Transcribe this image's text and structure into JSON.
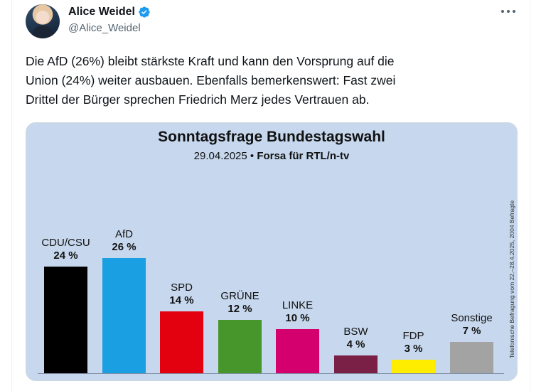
{
  "author": {
    "display_name": "Alice Weidel",
    "handle": "@Alice_Weidel"
  },
  "tweet": {
    "text": "Die AfD (26%) bleibt stärkste Kraft und kann den Vorsprung auf die\nUnion (24%) weiter ausbauen. Ebenfalls bemerkenswert: Fast zwei\nDrittel der Bürger sprechen Friedrich Merz jedes Vertrauen ab."
  },
  "icons": {
    "verified": "verified-badge-icon",
    "more": "more-options-icon"
  },
  "colors": {
    "verified": "#1d9bf0",
    "chart_background": "#c7d8ee"
  },
  "chart_data": {
    "type": "bar",
    "title": "Sonntagsfrage Bundestagswahl",
    "subtitle_date": "29.04.2025",
    "subtitle_sep": "•",
    "subtitle_source": "Forsa für RTL/n-tv",
    "side_note": "Telefonische Befragung vom 22.–28.4.2025, 2004 Befragte",
    "categories": [
      "CDU/CSU",
      "AfD",
      "SPD",
      "GRÜNE",
      "LINKE",
      "BSW",
      "FDP",
      "Sonstige"
    ],
    "values": [
      24,
      26,
      14,
      12,
      10,
      4,
      3,
      7
    ],
    "labels": [
      "24 %",
      "26 %",
      "14 %",
      "12 %",
      "10 %",
      "4 %",
      "3 %",
      "7 %"
    ],
    "colors": [
      "#000000",
      "#1aa0e2",
      "#e3000f",
      "#46962b",
      "#d4006d",
      "#7a1f45",
      "#ffed00",
      "#a3a3a3"
    ],
    "ylim": [
      0,
      26
    ]
  }
}
